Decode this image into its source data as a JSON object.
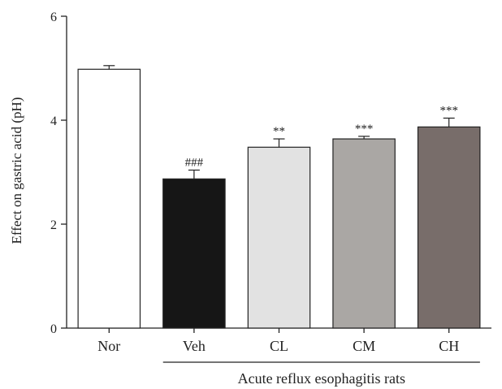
{
  "chart_data": {
    "type": "bar",
    "title": "",
    "ylabel": "Effect on gastric acid (pH)",
    "xlabel": "",
    "ylim": [
      0,
      6
    ],
    "yticks": [
      0,
      2,
      4,
      6
    ],
    "grid": false,
    "categories": [
      "Nor",
      "Veh",
      "CL",
      "CM",
      "CH"
    ],
    "values": [
      4.98,
      2.87,
      3.48,
      3.64,
      3.87
    ],
    "errors": [
      0.07,
      0.17,
      0.16,
      0.05,
      0.17
    ],
    "significance": [
      "",
      "###",
      "**",
      "***",
      "***"
    ],
    "colors": [
      "#ffffff",
      "#161616",
      "#e2e2e2",
      "#aaa7a4",
      "#786d6a"
    ],
    "group_label": "Acute reflux esophagitis rats",
    "group_span": [
      "Veh",
      "CH"
    ]
  }
}
